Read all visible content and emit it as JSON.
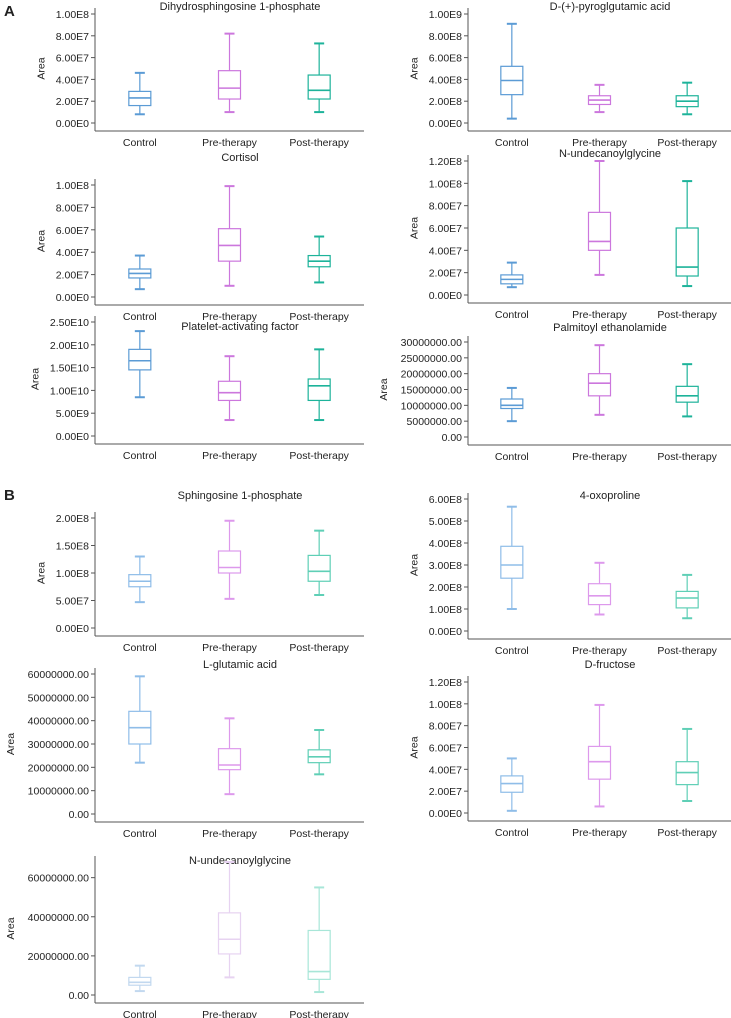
{
  "panel_labels": [
    "A",
    "B"
  ],
  "colors": {
    "A": [
      "#5b9bd5",
      "#cc77dd",
      "#1db39a"
    ],
    "B": [
      "#8fbde8",
      "#dd99ec",
      "#5fcfb6"
    ],
    "B_light": [
      "#c2d8ef",
      "#e7d3f1",
      "#a8e6d8"
    ],
    "axis": "#555555"
  },
  "chart_data": [
    {
      "type": "box",
      "panel": "A",
      "title": "Dihydrosphingosine 1-phosphate",
      "ylabel": "Area",
      "categories": [
        "Control",
        "Pre-therapy",
        "Post-therapy"
      ],
      "ylim": [
        0,
        100000000
      ],
      "yticks": [
        0,
        20000000,
        40000000,
        60000000,
        80000000,
        100000000
      ],
      "ytick_labels": [
        "0.00E0",
        "2.00E7",
        "4.00E7",
        "6.00E7",
        "8.00E7",
        "1.00E8"
      ],
      "boxes": [
        {
          "min": 8000000,
          "q1": 16000000,
          "median": 23000000,
          "q3": 29000000,
          "max": 46000000
        },
        {
          "min": 10000000,
          "q1": 22000000,
          "median": 32000000,
          "q3": 48000000,
          "max": 82000000
        },
        {
          "min": 10000000,
          "q1": 22000000,
          "median": 30000000,
          "q3": 44000000,
          "max": 73000000
        }
      ]
    },
    {
      "type": "box",
      "panel": "A",
      "title": "D-(+)-pyroglgutamic acid",
      "ylabel": "Area",
      "categories": [
        "Control",
        "Pre-therapy",
        "Post-therapy"
      ],
      "ylim": [
        0,
        1000000000
      ],
      "yticks": [
        0,
        200000000,
        400000000,
        600000000,
        800000000,
        1000000000
      ],
      "ytick_labels": [
        "0.00E0",
        "2.00E8",
        "4.00E8",
        "6.00E8",
        "8.00E8",
        "1.00E9"
      ],
      "boxes": [
        {
          "min": 40000000,
          "q1": 260000000,
          "median": 390000000,
          "q3": 520000000,
          "max": 910000000
        },
        {
          "min": 100000000,
          "q1": 170000000,
          "median": 210000000,
          "q3": 250000000,
          "max": 350000000
        },
        {
          "min": 80000000,
          "q1": 150000000,
          "median": 200000000,
          "q3": 250000000,
          "max": 370000000
        }
      ]
    },
    {
      "type": "box",
      "panel": "A",
      "title": "Cortisol",
      "ylabel": "Area",
      "categories": [
        "Control",
        "Pre-therapy",
        "Post-therapy"
      ],
      "ylim": [
        0,
        100000000
      ],
      "yticks": [
        0,
        20000000,
        40000000,
        60000000,
        80000000,
        100000000
      ],
      "ytick_labels": [
        "0.00E0",
        "2.00E7",
        "4.00E7",
        "6.00E7",
        "8.00E7",
        "1.00E8"
      ],
      "boxes": [
        {
          "min": 7000000,
          "q1": 17000000,
          "median": 21000000,
          "q3": 25000000,
          "max": 37000000
        },
        {
          "min": 10000000,
          "q1": 32000000,
          "median": 46000000,
          "q3": 61000000,
          "max": 99000000
        },
        {
          "min": 13000000,
          "q1": 27000000,
          "median": 32000000,
          "q3": 37000000,
          "max": 54000000
        }
      ]
    },
    {
      "type": "box",
      "panel": "A",
      "title": "N-undecanoylglycine",
      "ylabel": "Area",
      "categories": [
        "Control",
        "Pre-therapy",
        "Post-therapy"
      ],
      "ylim": [
        0,
        120000000
      ],
      "yticks": [
        0,
        20000000,
        40000000,
        60000000,
        80000000,
        100000000,
        120000000
      ],
      "ytick_labels": [
        "0.00E0",
        "2.00E7",
        "4.00E7",
        "6.00E7",
        "8.00E7",
        "1.00E8",
        "1.20E8"
      ],
      "boxes": [
        {
          "min": 7000000,
          "q1": 10000000,
          "median": 14000000,
          "q3": 18000000,
          "max": 29000000
        },
        {
          "min": 18000000,
          "q1": 40000000,
          "median": 48000000,
          "q3": 74000000,
          "max": 120000000
        },
        {
          "min": 8000000,
          "q1": 17000000,
          "median": 25000000,
          "q3": 60000000,
          "max": 102000000
        }
      ]
    },
    {
      "type": "box",
      "panel": "A",
      "title": "Platelet-activating factor",
      "ylabel": "Area",
      "categories": [
        "Control",
        "Pre-therapy",
        "Post-therapy"
      ],
      "ylim": [
        0,
        25000000000
      ],
      "yticks": [
        0,
        5000000000,
        10000000000,
        15000000000,
        20000000000,
        25000000000
      ],
      "ytick_labels": [
        "0.00E0",
        "5.00E9",
        "1.00E10",
        "1.50E10",
        "2.00E10",
        "2.50E10"
      ],
      "boxes": [
        {
          "min": 8500000000,
          "q1": 14500000000,
          "median": 16500000000,
          "q3": 19000000000,
          "max": 23000000000
        },
        {
          "min": 3500000000,
          "q1": 7800000000,
          "median": 9500000000,
          "q3": 12000000000,
          "max": 17500000000
        },
        {
          "min": 3500000000,
          "q1": 7800000000,
          "median": 11000000000,
          "q3": 12500000000,
          "max": 19000000000
        }
      ]
    },
    {
      "type": "box",
      "panel": "A",
      "title": "Palmitoyl ethanolamide",
      "ylabel": "Area",
      "categories": [
        "Control",
        "Pre-therapy",
        "Post-therapy"
      ],
      "ylim": [
        0,
        30000000
      ],
      "yticks": [
        0,
        5000000,
        10000000,
        15000000,
        20000000,
        25000000,
        30000000
      ],
      "ytick_labels": [
        "0.00",
        "5000000.00",
        "10000000.00",
        "15000000.00",
        "20000000.00",
        "25000000.00",
        "30000000.00"
      ],
      "boxes": [
        {
          "min": 5000000,
          "q1": 9000000,
          "median": 10000000,
          "q3": 12000000,
          "max": 15500000
        },
        {
          "min": 7000000,
          "q1": 13000000,
          "median": 17000000,
          "q3": 20000000,
          "max": 29000000
        },
        {
          "min": 6500000,
          "q1": 11000000,
          "median": 13000000,
          "q3": 16000000,
          "max": 23000000
        }
      ]
    },
    {
      "type": "box",
      "panel": "B",
      "title": "Sphingosine 1-phosphate",
      "ylabel": "Area",
      "categories": [
        "Control",
        "Pre-therapy",
        "Post-therapy"
      ],
      "ylim": [
        0,
        200000000
      ],
      "yticks": [
        0,
        50000000,
        100000000,
        150000000,
        200000000
      ],
      "ytick_labels": [
        "0.00E0",
        "5.00E7",
        "1.00E8",
        "1.50E8",
        "2.00E8"
      ],
      "boxes": [
        {
          "min": 47000000,
          "q1": 75000000,
          "median": 85000000,
          "q3": 97000000,
          "max": 130000000
        },
        {
          "min": 53000000,
          "q1": 100000000,
          "median": 110000000,
          "q3": 140000000,
          "max": 195000000
        },
        {
          "min": 60000000,
          "q1": 85000000,
          "median": 103000000,
          "q3": 132000000,
          "max": 177000000
        }
      ]
    },
    {
      "type": "box",
      "panel": "B",
      "title": "4-oxoproline",
      "ylabel": "Area",
      "categories": [
        "Control",
        "Pre-therapy",
        "Post-therapy"
      ],
      "ylim": [
        0,
        600000000
      ],
      "yticks": [
        0,
        100000000,
        200000000,
        300000000,
        400000000,
        500000000,
        600000000
      ],
      "ytick_labels": [
        "0.00E0",
        "1.00E8",
        "2.00E8",
        "3.00E8",
        "4.00E8",
        "5.00E8",
        "6.00E8"
      ],
      "boxes": [
        {
          "min": 100000000,
          "q1": 240000000,
          "median": 300000000,
          "q3": 385000000,
          "max": 565000000
        },
        {
          "min": 75000000,
          "q1": 120000000,
          "median": 160000000,
          "q3": 215000000,
          "max": 310000000
        },
        {
          "min": 58000000,
          "q1": 105000000,
          "median": 150000000,
          "q3": 180000000,
          "max": 255000000
        }
      ]
    },
    {
      "type": "box",
      "panel": "B",
      "title": "L-glutamic acid",
      "ylabel": "Area",
      "categories": [
        "Control",
        "Pre-therapy",
        "Post-therapy"
      ],
      "ylim": [
        0,
        60000000
      ],
      "yticks": [
        0,
        10000000,
        20000000,
        30000000,
        40000000,
        50000000,
        60000000
      ],
      "ytick_labels": [
        "0.00",
        "10000000.00",
        "20000000.00",
        "30000000.00",
        "40000000.00",
        "50000000.00",
        "60000000.00"
      ],
      "boxes": [
        {
          "min": 22000000,
          "q1": 30000000,
          "median": 37000000,
          "q3": 44000000,
          "max": 59000000
        },
        {
          "min": 8500000,
          "q1": 19000000,
          "median": 21000000,
          "q3": 28000000,
          "max": 41000000
        },
        {
          "min": 17000000,
          "q1": 22000000,
          "median": 24500000,
          "q3": 27500000,
          "max": 36000000
        }
      ]
    },
    {
      "type": "box",
      "panel": "B",
      "title": "D-fructose",
      "ylabel": "Area",
      "categories": [
        "Control",
        "Pre-therapy",
        "Post-therapy"
      ],
      "ylim": [
        0,
        120000000
      ],
      "yticks": [
        0,
        20000000,
        40000000,
        60000000,
        80000000,
        100000000,
        120000000
      ],
      "ytick_labels": [
        "0.00E0",
        "2.00E7",
        "4.00E7",
        "6.00E7",
        "8.00E7",
        "1.00E8",
        "1.20E8"
      ],
      "boxes": [
        {
          "min": 2000000,
          "q1": 19000000,
          "median": 27000000,
          "q3": 34000000,
          "max": 50000000
        },
        {
          "min": 6000000,
          "q1": 31000000,
          "median": 47000000,
          "q3": 61000000,
          "max": 99000000
        },
        {
          "min": 11000000,
          "q1": 26000000,
          "median": 37000000,
          "q3": 47000000,
          "max": 77000000
        }
      ]
    },
    {
      "type": "box",
      "panel": "B",
      "title": "N-undecanoylglycine",
      "ylabel": "Area",
      "categories": [
        "Control",
        "Pre-therapy",
        "Post-therapy"
      ],
      "ylim": [
        0,
        68000000
      ],
      "yticks": [
        0,
        20000000,
        40000000,
        60000000
      ],
      "ytick_labels": [
        "0.00",
        "20000000.00",
        "40000000.00",
        "60000000.00"
      ],
      "light": true,
      "boxes": [
        {
          "min": 2000000,
          "q1": 5000000,
          "median": 6500000,
          "q3": 9000000,
          "max": 15000000
        },
        {
          "min": 9000000,
          "q1": 21000000,
          "median": 28500000,
          "q3": 42000000,
          "max": 68000000
        },
        {
          "min": 1500000,
          "q1": 8000000,
          "median": 12000000,
          "q3": 33000000,
          "max": 55000000
        }
      ]
    }
  ]
}
